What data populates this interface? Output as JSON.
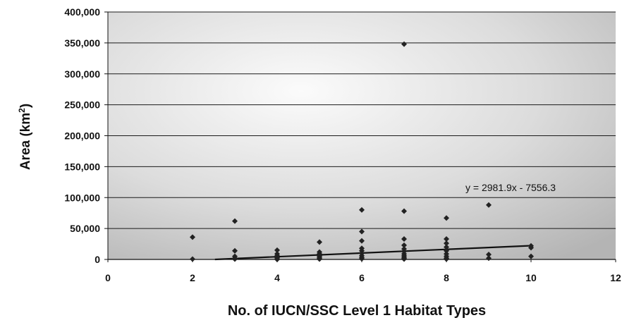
{
  "chart_data": {
    "type": "scatter",
    "title": "",
    "xlabel": "No. of IUCN/SSC Level 1 Habitat Types",
    "ylabel": "Area (km",
    "ylabel_sup": "2",
    "ylabel_suffix": ")",
    "xlim": [
      0,
      12
    ],
    "ylim": [
      0,
      400000
    ],
    "x_ticks": [
      0,
      2,
      4,
      6,
      8,
      10,
      12
    ],
    "y_ticks": [
      0,
      50000,
      100000,
      150000,
      200000,
      250000,
      300000,
      350000,
      400000
    ],
    "x_tick_labels": [
      "0",
      "2",
      "4",
      "6",
      "8",
      "10",
      "12"
    ],
    "y_tick_labels": [
      "0",
      "50,000",
      "100,000",
      "150,000",
      "200,000",
      "250,000",
      "300,000",
      "350,000",
      "400,000"
    ],
    "grid": true,
    "legend": "none",
    "colors": {
      "marker": "#222222",
      "gridline": "#1a1a1a",
      "trendline": "#111111",
      "background_light": "#fafafa",
      "background_dark": "#b9b9b9"
    },
    "series": [
      {
        "points": [
          [
            2,
            36000
          ],
          [
            2,
            500
          ],
          [
            3,
            62000
          ],
          [
            3,
            14000
          ],
          [
            3,
            5000
          ],
          [
            3,
            2000
          ],
          [
            3,
            500
          ],
          [
            4,
            15000
          ],
          [
            4,
            9000
          ],
          [
            4,
            6000
          ],
          [
            4,
            3000
          ],
          [
            4,
            1000
          ],
          [
            4,
            0
          ],
          [
            5,
            28000
          ],
          [
            5,
            12000
          ],
          [
            5,
            9000
          ],
          [
            5,
            6000
          ],
          [
            5,
            4000
          ],
          [
            5,
            2000
          ],
          [
            5,
            500
          ],
          [
            6,
            80000
          ],
          [
            6,
            45000
          ],
          [
            6,
            30000
          ],
          [
            6,
            18000
          ],
          [
            6,
            14000
          ],
          [
            6,
            10000
          ],
          [
            6,
            6000
          ],
          [
            6,
            3000
          ],
          [
            6,
            1000
          ],
          [
            7,
            348000
          ],
          [
            7,
            78000
          ],
          [
            7,
            33000
          ],
          [
            7,
            23000
          ],
          [
            7,
            17000
          ],
          [
            7,
            13000
          ],
          [
            7,
            9000
          ],
          [
            7,
            6000
          ],
          [
            7,
            3500
          ],
          [
            7,
            1500
          ],
          [
            7,
            500
          ],
          [
            8,
            67000
          ],
          [
            8,
            33000
          ],
          [
            8,
            26000
          ],
          [
            8,
            20000
          ],
          [
            8,
            14000
          ],
          [
            8,
            9000
          ],
          [
            8,
            5000
          ],
          [
            8,
            2000
          ],
          [
            8,
            500
          ],
          [
            9,
            88000
          ],
          [
            9,
            8000
          ],
          [
            9,
            2000
          ],
          [
            10,
            22000
          ],
          [
            10,
            19000
          ],
          [
            10,
            5000
          ]
        ]
      }
    ],
    "trendline": {
      "equation": "y = 2981.9x - 7556.3",
      "slope": 2981.9,
      "intercept": -7556.3,
      "x_range": [
        2.53,
        10
      ]
    }
  }
}
